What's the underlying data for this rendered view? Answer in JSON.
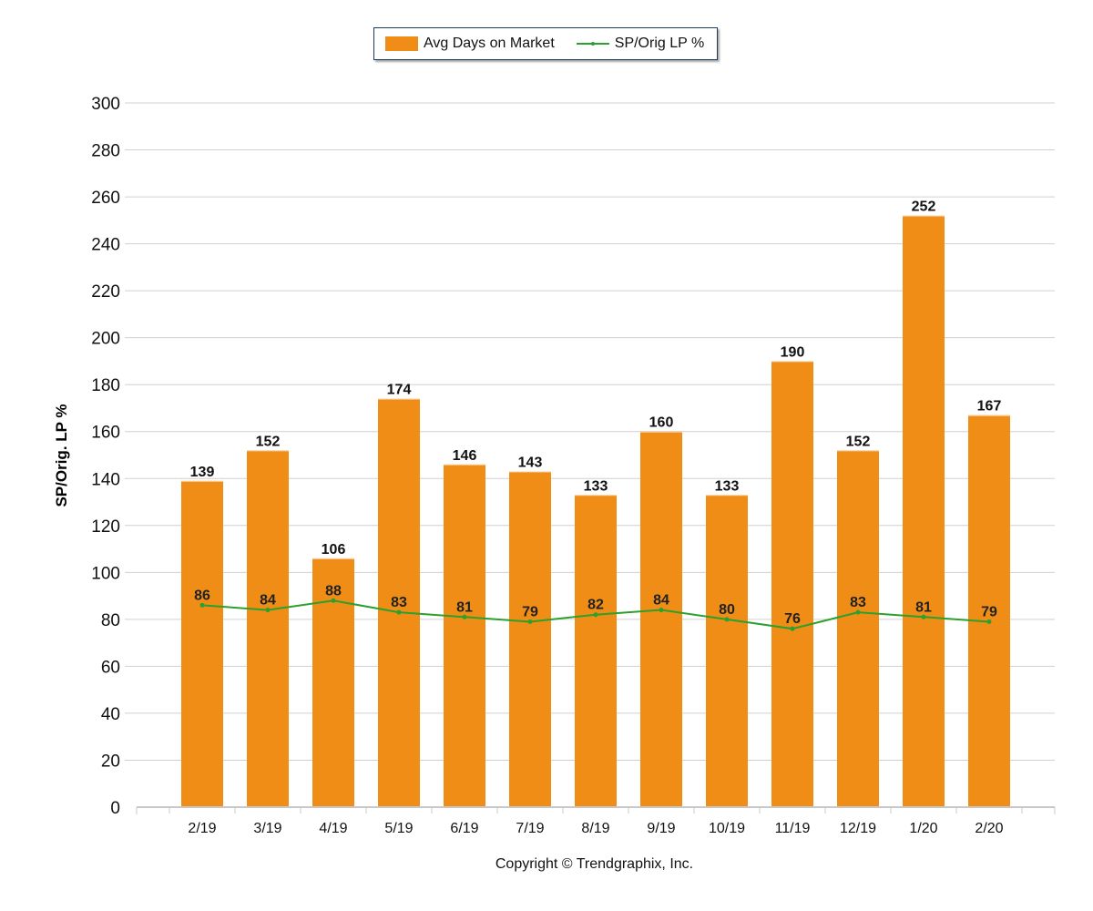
{
  "legend": {
    "bar_label": "Avg Days on Market",
    "line_label": "SP/Orig LP %"
  },
  "colors": {
    "bar": "#EF8D16",
    "line": "#2CA02C",
    "grid": "#D0D0D0"
  },
  "copyright": "Copyright © Trendgraphix, Inc.",
  "chart_data": {
    "type": "bar",
    "title": "",
    "xlabel": "",
    "ylabel": "SP/Orig. LP %",
    "ylim": [
      0,
      300
    ],
    "yticks": [
      0,
      20,
      40,
      60,
      80,
      100,
      120,
      140,
      160,
      180,
      200,
      220,
      240,
      260,
      280,
      300
    ],
    "grid": true,
    "legend_position": "top-center",
    "categories": [
      "2/19",
      "3/19",
      "4/19",
      "5/19",
      "6/19",
      "7/19",
      "8/19",
      "9/19",
      "10/19",
      "11/19",
      "12/19",
      "1/20",
      "2/20"
    ],
    "series": [
      {
        "name": "Avg Days on Market",
        "type": "bar",
        "values": [
          139,
          152,
          106,
          174,
          146,
          143,
          133,
          160,
          133,
          190,
          152,
          252,
          167
        ]
      },
      {
        "name": "SP/Orig LP %",
        "type": "line",
        "values": [
          86,
          84,
          88,
          83,
          81,
          79,
          82,
          84,
          80,
          76,
          83,
          81,
          79
        ]
      }
    ]
  }
}
